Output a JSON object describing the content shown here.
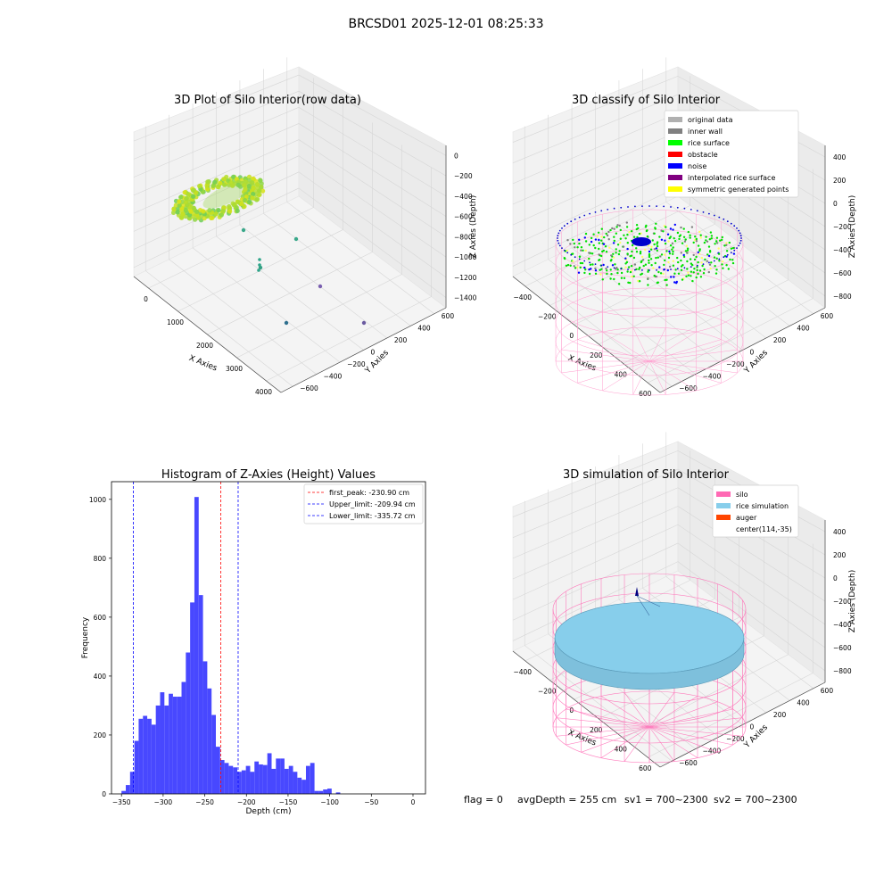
{
  "figure": {
    "suptitle": "BRCSD01 2025-12-01 08:25:33",
    "status": {
      "flag": "flag = 0",
      "avg": "avgDepth = 255 cm",
      "sv1": "sv1 = 700~2300",
      "sv2": "sv2 = 700~2300"
    }
  },
  "chart_data": [
    {
      "type": "scatter",
      "projection": "3d",
      "title": "3D Plot of Silo Interior(row data)",
      "xlabel": "X Axies",
      "ylabel": "Y Axies",
      "zlabel": "Z Axies (Depth)",
      "xticks": [
        "0",
        "1000",
        "2000",
        "3000",
        "4000"
      ],
      "yticks": [
        "600",
        "400",
        "200",
        "0",
        "−200",
        "−400",
        "−600"
      ],
      "zticks": [
        "0",
        "−200",
        "−400",
        "−600",
        "−800",
        "−1000",
        "−1200",
        "−1400"
      ],
      "xlim": [
        -500,
        4200
      ],
      "ylim": [
        -700,
        700
      ],
      "zlim": [
        -1500,
        100
      ],
      "grid": true,
      "colormap": "viridis",
      "outliers": [
        {
          "x": 3000,
          "y": -400,
          "z": -1400,
          "color": "#2e6f8e"
        },
        {
          "x": 4000,
          "y": 500,
          "z": -1400,
          "color": "#6a5aa0"
        },
        {
          "x": 3500,
          "y": 400,
          "z": -1100,
          "color": "#7a5fb0"
        },
        {
          "x": 2000,
          "y": 200,
          "z": -700,
          "color": "#3aa88a"
        },
        {
          "x": 1500,
          "y": -400,
          "z": -900,
          "color": "#3aa88a"
        },
        {
          "x": 1700,
          "y": -300,
          "z": -800,
          "color": "#35a083"
        }
      ]
    },
    {
      "type": "scatter",
      "projection": "3d",
      "title": "3D classify of Silo Interior",
      "xlabel": "X Axies",
      "ylabel": "Y Axies",
      "zlabel": "Z Axies (Depth)",
      "xticks": [
        "−400",
        "−200",
        "0",
        "200",
        "400",
        "600"
      ],
      "yticks": [
        "600",
        "400",
        "200",
        "0",
        "−200",
        "−400",
        "−600"
      ],
      "zticks": [
        "400",
        "200",
        "0",
        "−200",
        "−400",
        "−600",
        "−800"
      ],
      "xlim": [
        -500,
        700
      ],
      "ylim": [
        -700,
        700
      ],
      "zlim": [
        -900,
        500
      ],
      "grid": true,
      "legend_position": "top-right",
      "legend": [
        {
          "label": "original data",
          "color": "#b0b0b0"
        },
        {
          "label": "inner wall",
          "color": "#808080"
        },
        {
          "label": "rice surface",
          "color": "#00ff00"
        },
        {
          "label": "obstacle",
          "color": "#ff0000"
        },
        {
          "label": "noise",
          "color": "#0000ff"
        },
        {
          "label": "interpolated rice surface",
          "color": "#800080"
        },
        {
          "label": "symmetric generated points",
          "color": "#ffff00"
        }
      ]
    },
    {
      "type": "bar",
      "title": "Histogram of Z-Axies (Height) Values",
      "xlabel": "Depth (cm)",
      "ylabel": "Frequency",
      "xlim": [
        -362,
        15
      ],
      "ylim": [
        0,
        1060
      ],
      "xticks": [
        -350,
        -300,
        -250,
        -200,
        -150,
        -100,
        -50,
        0
      ],
      "xticklabels": [
        "−350",
        "−300",
        "−250",
        "−200",
        "−150",
        "−100",
        "−50",
        "0"
      ],
      "yticks": [
        0,
        200,
        400,
        600,
        800,
        1000
      ],
      "yticklabels": [
        "0",
        "200",
        "400",
        "600",
        "800",
        "1000"
      ],
      "bin_start": -350,
      "bin_width": 5.15,
      "values": [
        10,
        30,
        75,
        180,
        255,
        265,
        255,
        235,
        300,
        345,
        300,
        340,
        330,
        330,
        380,
        480,
        650,
        1008,
        675,
        450,
        358,
        268,
        160,
        115,
        105,
        95,
        90,
        75,
        80,
        95,
        75,
        110,
        100,
        98,
        138,
        85,
        120,
        120,
        85,
        95,
        75,
        55,
        48,
        95,
        105,
        10,
        10,
        15,
        18,
        0,
        5
      ],
      "color": "#4848ff",
      "legend_position": "top-right",
      "lines": [
        {
          "label": "first_peak: -230.90 cm",
          "x": -230.9,
          "color": "#ff0000"
        },
        {
          "label": "Upper_limit: -209.94 cm",
          "x": -209.94,
          "color": "#0000ff"
        },
        {
          "label": "Lower_limit: -335.72 cm",
          "x": -335.72,
          "color": "#0000ff"
        }
      ]
    },
    {
      "type": "scatter",
      "projection": "3d",
      "title": "3D simulation of Silo Interior",
      "xlabel": "X Axies",
      "ylabel": "Y Axies",
      "zlabel": "Z Axies (Depth)",
      "xticks": [
        "−400",
        "−200",
        "0",
        "200",
        "400",
        "600"
      ],
      "yticks": [
        "600",
        "400",
        "200",
        "0",
        "−200",
        "−400",
        "−600"
      ],
      "zticks": [
        "400",
        "200",
        "0",
        "−200",
        "−400",
        "−600",
        "−800"
      ],
      "xlim": [
        -500,
        700
      ],
      "ylim": [
        -700,
        700
      ],
      "zlim": [
        -900,
        500
      ],
      "grid": true,
      "legend_position": "top-right",
      "legend": [
        {
          "label": "silo",
          "color": "#ff69b4"
        },
        {
          "label": "rice simulation",
          "color": "#87ceeb"
        },
        {
          "label": "auger",
          "color": "#ff4500"
        },
        {
          "label": "center(114,-35)",
          "color": ""
        }
      ]
    }
  ]
}
